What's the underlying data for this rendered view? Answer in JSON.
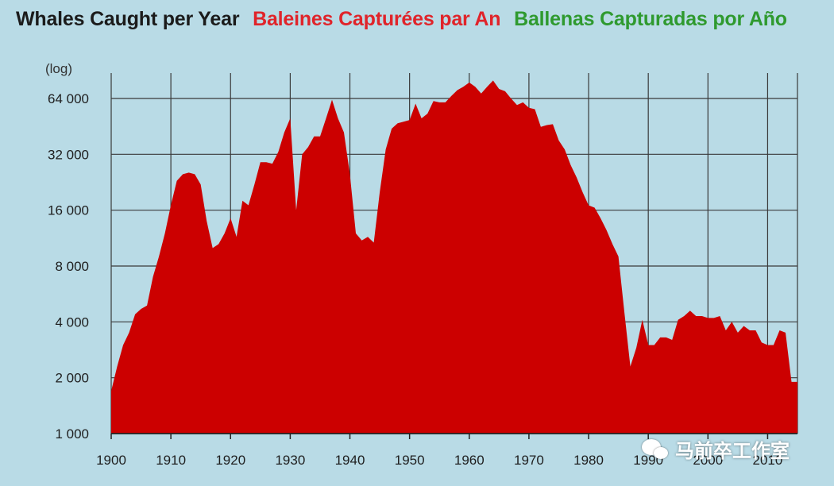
{
  "title": {
    "en": "Whales Caught per Year",
    "fr": "Baleines Capturées par An",
    "es": "Ballenas Capturadas por Año"
  },
  "watermark": {
    "text": "马前卒工作室",
    "icon": "wechat-icon"
  },
  "colors": {
    "fill": "#cc0000",
    "background": "#b9dbe6",
    "grid": "#333333"
  },
  "chart_data": {
    "type": "area",
    "y_scale": "log2",
    "y_unit_label": "(log)",
    "xlim": [
      1900,
      2015
    ],
    "ylim": [
      1000,
      90000
    ],
    "grid": true,
    "x_ticks": [
      1900,
      1910,
      1920,
      1930,
      1940,
      1950,
      1960,
      1970,
      1980,
      1990,
      2000,
      2010
    ],
    "x_tick_labels": [
      "1900",
      "1910",
      "1920",
      "1930",
      "1940",
      "1950",
      "1960",
      "1970",
      "1980",
      "1990",
      "2000",
      "2010"
    ],
    "y_ticks": [
      1000,
      2000,
      4000,
      8000,
      16000,
      32000,
      64000
    ],
    "y_tick_labels": [
      "1 000",
      "2 000",
      "4 000",
      "8 000",
      "16 000",
      "32 000",
      "64 000"
    ],
    "series": [
      {
        "x": [
          1900,
          1901,
          1902,
          1903,
          1904,
          1905,
          1906,
          1907,
          1908,
          1909,
          1910,
          1911,
          1912,
          1913,
          1914,
          1915,
          1916,
          1917,
          1918,
          1919,
          1920,
          1921,
          1922,
          1923,
          1924,
          1925,
          1926,
          1927,
          1928,
          1929,
          1930,
          1931,
          1932,
          1933,
          1934,
          1935,
          1936,
          1937,
          1938,
          1939,
          1940,
          1941,
          1942,
          1943,
          1944,
          1945,
          1946,
          1947,
          1948,
          1949,
          1950,
          1951,
          1952,
          1953,
          1954,
          1955,
          1956,
          1957,
          1958,
          1959,
          1960,
          1961,
          1962,
          1963,
          1964,
          1965,
          1966,
          1967,
          1968,
          1969,
          1970,
          1971,
          1972,
          1973,
          1974,
          1975,
          1976,
          1977,
          1978,
          1979,
          1980,
          1981,
          1982,
          1983,
          1984,
          1985,
          1986,
          1987,
          1988,
          1989,
          1990,
          1991,
          1992,
          1993,
          1994,
          1995,
          1996,
          1997,
          1998,
          1999,
          2000,
          2001,
          2002,
          2003,
          2004,
          2005,
          2006,
          2007,
          2008,
          2009,
          2010,
          2011,
          2012,
          2013,
          2014,
          2015
        ],
        "values": [
          1700,
          2300,
          3000,
          3500,
          4400,
          4700,
          4900,
          7000,
          9000,
          12000,
          17000,
          23000,
          25000,
          25500,
          25000,
          22000,
          14000,
          10000,
          10500,
          12000,
          14500,
          11500,
          18000,
          17000,
          22000,
          29000,
          29000,
          28500,
          33000,
          42000,
          50000,
          16000,
          32000,
          35000,
          40000,
          40000,
          50000,
          63000,
          50000,
          42000,
          25000,
          12000,
          11000,
          11500,
          10700,
          20000,
          34000,
          44000,
          47000,
          48000,
          49000,
          60000,
          50000,
          53000,
          62000,
          61000,
          61000,
          66000,
          71000,
          74000,
          78000,
          74000,
          68000,
          74000,
          80000,
          72000,
          70000,
          64000,
          59000,
          61000,
          57000,
          56000,
          45000,
          46000,
          46500,
          38000,
          34000,
          28000,
          24000,
          20000,
          17000,
          16500,
          14500,
          12500,
          10500,
          9000,
          4500,
          2300,
          2900,
          4100,
          3000,
          3000,
          3300,
          3300,
          3200,
          4100,
          4300,
          4600,
          4300,
          4300,
          4200,
          4200,
          4300,
          3600,
          4000,
          3500,
          3800,
          3600,
          3600,
          3100,
          3000,
          3000,
          3600,
          3500,
          1900,
          1900
        ]
      }
    ]
  }
}
